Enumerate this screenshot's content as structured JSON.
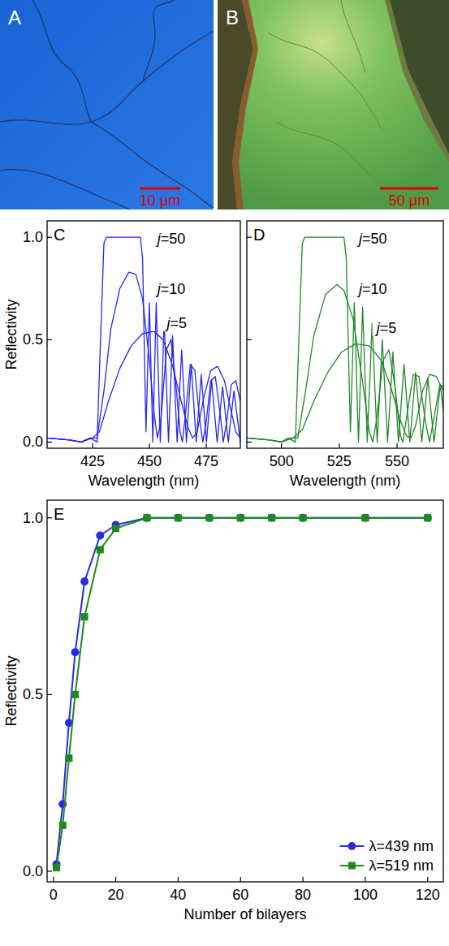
{
  "images": [
    {
      "label": "A",
      "scale_bar": "10 μm"
    },
    {
      "label": "B",
      "scale_bar": "50 μm"
    }
  ],
  "chart_data": [
    {
      "type": "line",
      "panel": "C",
      "x_label": "Wavelength (nm)",
      "y_label": "Reflectivity",
      "xlim": [
        405,
        490
      ],
      "ylim": [
        -0.03,
        1.08
      ],
      "xticks": [
        425,
        450,
        475
      ],
      "yticks": [
        {
          "value": 0,
          "label": "0.0"
        },
        {
          "value": 0.5,
          "label": "0.5"
        },
        {
          "value": 1,
          "label": "1.0"
        }
      ],
      "grid": false,
      "series": [
        {
          "name": "j=50",
          "color": "#2626f2",
          "x": [
            405,
            415,
            420,
            424,
            427,
            428.5,
            430,
            431,
            446,
            447,
            448.5,
            450,
            451.5,
            453,
            454.8,
            456.5,
            458.4,
            460.2,
            462.2,
            464.2,
            466.3,
            468.4,
            470.6,
            472.8,
            475.1,
            477.4,
            479.8,
            482.2,
            484.7,
            487.2,
            490
          ],
          "values": [
            0.02,
            0.01,
            0,
            0.02,
            0,
            0.5,
            0.97,
            1,
            1,
            0.9,
            0.05,
            0.68,
            0,
            0.68,
            0,
            0.6,
            0,
            0.52,
            0,
            0.45,
            0,
            0.38,
            0,
            0.33,
            0,
            0.3,
            0,
            0.27,
            0,
            0.25,
            0
          ]
        },
        {
          "name": "j=10",
          "color": "#2626f2",
          "x": [
            405,
            415,
            420,
            424,
            427,
            430,
            433,
            437,
            441,
            444,
            447,
            450,
            452,
            453.5,
            455,
            457.5,
            459.5,
            461.5,
            463.5,
            464.5,
            466,
            468,
            470,
            472,
            473.5,
            475,
            477,
            479,
            481,
            482.5,
            484,
            486,
            488,
            490
          ],
          "values": [
            0.02,
            0.01,
            0,
            0.02,
            0.02,
            0.25,
            0.55,
            0.75,
            0.83,
            0.82,
            0.7,
            0.4,
            0.15,
            0.02,
            0.1,
            0.45,
            0.5,
            0.3,
            0.05,
            0,
            0.15,
            0.38,
            0.35,
            0.12,
            0,
            0.1,
            0.3,
            0.32,
            0.15,
            0,
            0.1,
            0.28,
            0.3,
            0.2
          ]
        },
        {
          "name": "j=5",
          "color": "#2626f2",
          "x": [
            405,
            415,
            420,
            425,
            428,
            432,
            437,
            442,
            447,
            452,
            456,
            460,
            464,
            467,
            469,
            471,
            474,
            477,
            480,
            483,
            486,
            488,
            490
          ],
          "values": [
            0.02,
            0.01,
            0,
            0.02,
            0.05,
            0.2,
            0.36,
            0.47,
            0.53,
            0.54,
            0.5,
            0.38,
            0.2,
            0.07,
            0.02,
            0.05,
            0.22,
            0.35,
            0.37,
            0.3,
            0.15,
            0.05,
            0.02
          ]
        }
      ]
    },
    {
      "type": "line",
      "panel": "D",
      "x_label": "Wavelength (nm)",
      "xlim": [
        485,
        570
      ],
      "ylim": [
        -0.03,
        1.08
      ],
      "xticks": [
        500,
        525,
        550
      ],
      "yticks": [
        0,
        0.5,
        1
      ],
      "tick_labels": "x",
      "grid": false,
      "series": [
        {
          "name": "j=50",
          "color": "#22882a",
          "x": [
            485,
            495,
            500,
            503,
            506,
            507.5,
            509,
            510,
            527,
            528,
            529.8,
            531.5,
            533.3,
            535.1,
            537.1,
            539.2,
            541.4,
            543.6,
            545.9,
            548.2,
            550.6,
            553,
            555.5,
            558,
            560.7,
            563.3,
            566,
            568.7,
            570
          ],
          "values": [
            0.02,
            0.01,
            0,
            0.02,
            0,
            0.5,
            0.97,
            1,
            1,
            0.9,
            0.05,
            0.68,
            0,
            0.66,
            0,
            0.58,
            0,
            0.5,
            0,
            0.44,
            0,
            0.38,
            0,
            0.34,
            0,
            0.31,
            0,
            0.28,
            0.15
          ]
        },
        {
          "name": "j=10",
          "color": "#22882a",
          "x": [
            485,
            495,
            500,
            504,
            507,
            510,
            514,
            519,
            524,
            527,
            531,
            535,
            538,
            539.5,
            541,
            544,
            546.5,
            549,
            551.5,
            552.5,
            554.5,
            557,
            559.5,
            562,
            564,
            566,
            568.5,
            570
          ],
          "values": [
            0.02,
            0.01,
            0,
            0.02,
            0.02,
            0.22,
            0.52,
            0.72,
            0.77,
            0.74,
            0.6,
            0.3,
            0.05,
            0,
            0.1,
            0.4,
            0.45,
            0.28,
            0.03,
            0,
            0.15,
            0.33,
            0.32,
            0.12,
            0,
            0.12,
            0.28,
            0.27
          ]
        },
        {
          "name": "j=5",
          "color": "#22882a",
          "x": [
            485,
            495,
            500,
            505,
            509,
            514,
            520,
            526,
            532,
            538,
            543,
            547,
            551,
            554,
            556,
            558,
            561,
            564,
            567,
            570
          ],
          "values": [
            0.02,
            0.01,
            0,
            0.02,
            0.06,
            0.2,
            0.34,
            0.44,
            0.48,
            0.47,
            0.4,
            0.28,
            0.12,
            0.03,
            0.02,
            0.08,
            0.25,
            0.33,
            0.32,
            0.25
          ]
        }
      ]
    },
    {
      "type": "line",
      "panel": "E",
      "x_label": "Number of bilayers",
      "y_label": "Reflectivity",
      "xlim": [
        -2,
        125
      ],
      "ylim": [
        -0.03,
        1.05
      ],
      "xticks": [
        0,
        20,
        40,
        60,
        80,
        100,
        120
      ],
      "yticks": [
        {
          "value": 0,
          "label": "0.0"
        },
        {
          "value": 0.5,
          "label": "0.5"
        },
        {
          "value": 1,
          "label": "1.0"
        }
      ],
      "grid": false,
      "legend": "lower right",
      "x": [
        1,
        3,
        5,
        7,
        10,
        15,
        20,
        30,
        40,
        50,
        60,
        70,
        80,
        100,
        120
      ],
      "series": [
        {
          "name": "λ=439 nm",
          "color": "#2a2ae6",
          "marker": "circle",
          "values": [
            0.02,
            0.19,
            0.42,
            0.62,
            0.82,
            0.95,
            0.98,
            1,
            1,
            1,
            1,
            1,
            1,
            1,
            1
          ]
        },
        {
          "name": "λ=519 nm",
          "color": "#1e8a1e",
          "marker": "square",
          "values": [
            0.01,
            0.13,
            0.32,
            0.5,
            0.72,
            0.91,
            0.97,
            1,
            1,
            1,
            1,
            1,
            1,
            1,
            1
          ]
        }
      ]
    }
  ]
}
